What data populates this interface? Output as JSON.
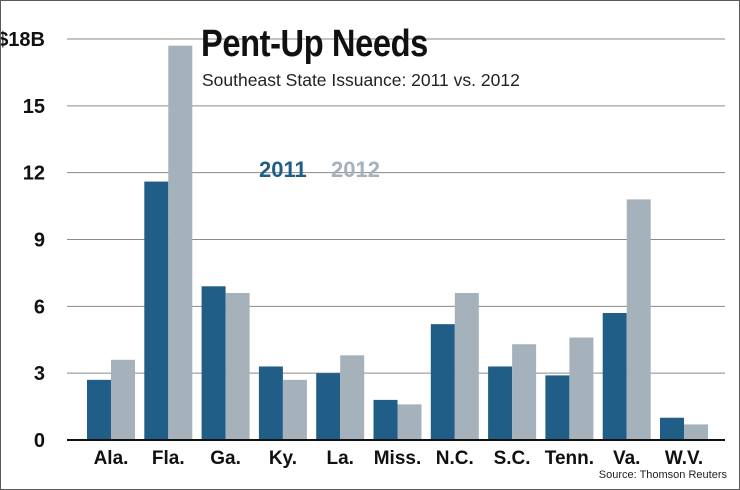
{
  "chart_data": {
    "type": "bar",
    "title": "Pent-Up Needs",
    "subtitle": "Southeast State Issuance: 2011 vs. 2012",
    "source": "Source: Thomson Reuters",
    "categories": [
      "Ala.",
      "Fla.",
      "Ga.",
      "Ky.",
      "La.",
      "Miss.",
      "N.C.",
      "S.C.",
      "Tenn.",
      "Va.",
      "W.V."
    ],
    "series": [
      {
        "name": "2011",
        "color": "#215e87",
        "values": [
          2.7,
          11.6,
          6.9,
          3.3,
          3.0,
          1.8,
          5.2,
          3.3,
          2.9,
          5.7,
          1.0
        ]
      },
      {
        "name": "2012",
        "color": "#a5b2bb",
        "values": [
          3.6,
          17.7,
          6.6,
          2.7,
          3.8,
          1.6,
          6.6,
          4.3,
          4.6,
          10.8,
          0.7
        ]
      }
    ],
    "yticks": [
      0,
      3,
      6,
      9,
      12,
      15,
      18
    ],
    "ytick_labels": [
      "0",
      "3",
      "6",
      "9",
      "12",
      "15",
      "$18B"
    ],
    "ylim": [
      0,
      18
    ],
    "grid": true,
    "legend_position": "center-left"
  }
}
